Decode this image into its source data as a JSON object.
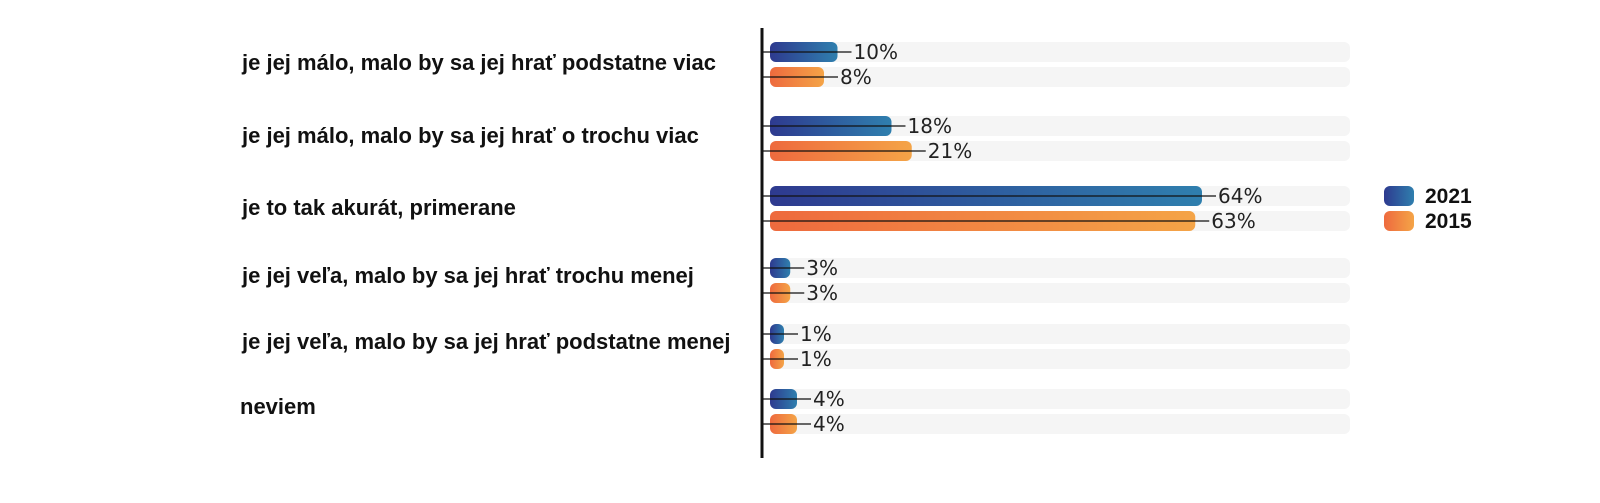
{
  "chart_data": {
    "type": "bar",
    "orientation": "horizontal",
    "categories": [
      "je jej málo, malo by sa jej hrať podstatne viac",
      "je jej málo, malo by sa jej hrať o trochu viac",
      "je to tak akurát, primerane",
      "je jej veľa, malo by sa jej hrať trochu menej",
      "je jej veľa, malo by sa jej hrať podstatne menej",
      "neviem"
    ],
    "series": [
      {
        "name": "2021",
        "values": [
          10,
          18,
          64,
          3,
          1,
          4
        ],
        "labels": [
          "10%",
          "18%",
          "64%",
          "3%",
          "1%",
          "4%"
        ],
        "color_start": "#2e3a8f",
        "color_end": "#2f7fae"
      },
      {
        "name": "2015",
        "values": [
          8,
          21,
          63,
          3,
          1,
          4
        ],
        "labels": [
          "8%",
          "21%",
          "63%",
          "3%",
          "1%",
          "4%"
        ],
        "color_start": "#ee6a3e",
        "color_end": "#f4a447"
      }
    ],
    "xlim": [
      0,
      100
    ],
    "legend_position": "right",
    "track_color": "#f5f5f5",
    "axis_color": "#111111"
  }
}
